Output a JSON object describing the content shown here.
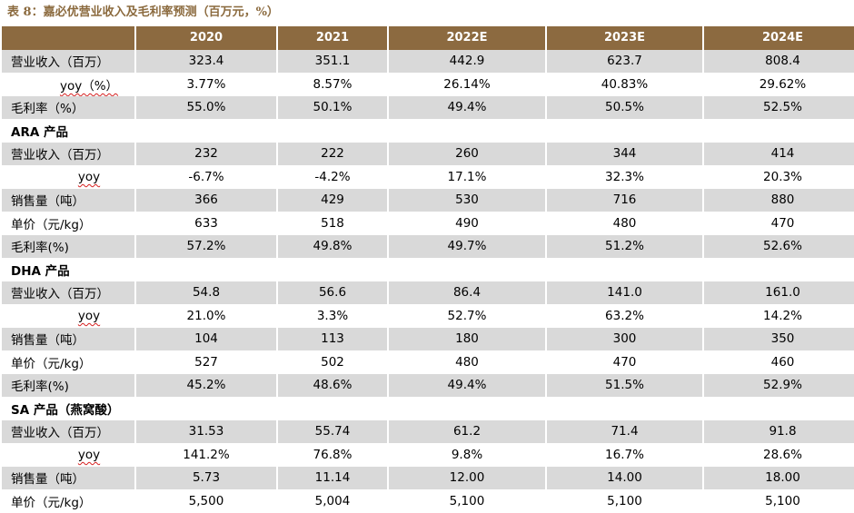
{
  "caption": "表 8：嘉必优营业收入及毛利率预测（百万元，%）",
  "columns": [
    "2020",
    "2021",
    "2022E",
    "2023E",
    "2024E"
  ],
  "summary": [
    {
      "label": "营业收入（百万）",
      "values": [
        "323.4",
        "351.1",
        "442.9",
        "623.7",
        "808.4"
      ]
    },
    {
      "label": "yoy（%）",
      "values": [
        "3.77%",
        "8.57%",
        "26.14%",
        "40.83%",
        "29.62%"
      ]
    },
    {
      "label": "毛利率（%）",
      "values": [
        "55.0%",
        "50.1%",
        "49.4%",
        "50.5%",
        "52.5%"
      ]
    }
  ],
  "ara": {
    "title": "ARA 产品",
    "rows": [
      {
        "label": "营业收入（百万）",
        "values": [
          "232",
          "222",
          "260",
          "344",
          "414"
        ]
      },
      {
        "label": "yoy",
        "values": [
          "-6.7%",
          "-4.2%",
          "17.1%",
          "32.3%",
          "20.3%"
        ]
      },
      {
        "label": "销售量（吨）",
        "values": [
          "366",
          "429",
          "530",
          "716",
          "880"
        ]
      },
      {
        "label": "单价（元/kg）",
        "values": [
          "633",
          "518",
          "490",
          "480",
          "470"
        ]
      },
      {
        "label": "毛利率(%)",
        "values": [
          "57.2%",
          "49.8%",
          "49.7%",
          "51.2%",
          "52.6%"
        ]
      }
    ]
  },
  "dha": {
    "title": "DHA 产品",
    "rows": [
      {
        "label": "营业收入（百万）",
        "values": [
          "54.8",
          "56.6",
          "86.4",
          "141.0",
          "161.0"
        ]
      },
      {
        "label": "yoy",
        "values": [
          "21.0%",
          "3.3%",
          "52.7%",
          "63.2%",
          "14.2%"
        ]
      },
      {
        "label": "销售量（吨）",
        "values": [
          "104",
          "113",
          "180",
          "300",
          "350"
        ]
      },
      {
        "label": "单价（元/kg）",
        "values": [
          "527",
          "502",
          "480",
          "470",
          "460"
        ]
      },
      {
        "label": "毛利率(%)",
        "values": [
          "45.2%",
          "48.6%",
          "49.4%",
          "51.5%",
          "52.9%"
        ]
      }
    ]
  },
  "sa": {
    "title": "SA 产品（燕窝酸）",
    "rows": [
      {
        "label": "营业收入（百万）",
        "values": [
          "31.53",
          "55.74",
          "61.2",
          "71.4",
          "91.8"
        ]
      },
      {
        "label": "yoy",
        "values": [
          "141.2%",
          "76.8%",
          "9.8%",
          "16.7%",
          "28.6%"
        ]
      },
      {
        "label": "销售量（吨）",
        "values": [
          "5.73",
          "11.14",
          "12.00",
          "14.00",
          "18.00"
        ]
      },
      {
        "label": "单价（元/kg）",
        "values": [
          "5,500",
          "5,004",
          "5,100",
          "5,100",
          "5,100"
        ]
      }
    ]
  }
}
